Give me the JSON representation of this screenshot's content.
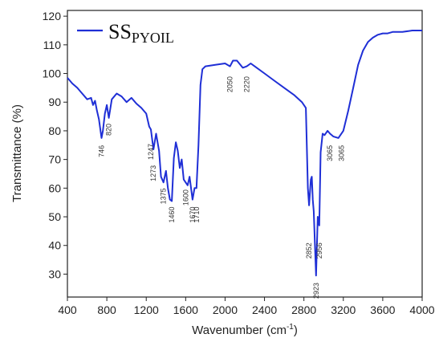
{
  "chart_data": {
    "type": "line",
    "xlabel": "Wavenumber (cm",
    "xlabel_sup": "-1",
    "xlabel_close": ")",
    "ylabel": "Transmittance (%)",
    "xlim": [
      400,
      4000
    ],
    "ylim": [
      22,
      122
    ],
    "x_ticks": [
      400,
      800,
      1200,
      1600,
      2000,
      2400,
      2800,
      3200,
      3600,
      4000
    ],
    "y_ticks": [
      30,
      40,
      50,
      60,
      70,
      80,
      90,
      100,
      110,
      120
    ],
    "grid": false,
    "legend": {
      "position": "top-left",
      "label_main": "SS",
      "label_sub": "PYOIL"
    },
    "series": [
      {
        "name": "SS PYOIL",
        "color": "#1f2fd6",
        "x": [
          400,
          450,
          500,
          550,
          600,
          640,
          660,
          680,
          700,
          720,
          746,
          760,
          780,
          800,
          820,
          850,
          900,
          950,
          1000,
          1050,
          1100,
          1150,
          1200,
          1230,
          1247,
          1260,
          1273,
          1300,
          1330,
          1350,
          1375,
          1400,
          1420,
          1440,
          1460,
          1480,
          1500,
          1520,
          1540,
          1560,
          1580,
          1600,
          1620,
          1640,
          1670,
          1690,
          1710,
          1730,
          1750,
          1770,
          1800,
          1900,
          2000,
          2050,
          2080,
          2120,
          2180,
          2220,
          2260,
          2300,
          2400,
          2500,
          2600,
          2700,
          2780,
          2820,
          2840,
          2852,
          2870,
          2880,
          2890,
          2900,
          2923,
          2940,
          2956,
          2970,
          2990,
          3010,
          3040,
          3065,
          3100,
          3150,
          3200,
          3250,
          3300,
          3350,
          3400,
          3450,
          3500,
          3550,
          3600,
          3650,
          3700,
          3800,
          3900,
          4000
        ],
        "y": [
          98.5,
          96.5,
          95,
          93,
          91,
          91.5,
          89,
          90.5,
          87,
          84,
          77.5,
          80,
          86,
          89,
          84.5,
          91,
          93,
          92,
          90,
          91.5,
          89.5,
          88,
          86,
          81.5,
          80.5,
          77,
          73.5,
          79,
          73,
          64,
          62,
          66,
          60,
          56,
          55.5,
          70.5,
          76,
          73,
          67,
          70,
          63,
          62,
          61,
          64,
          56,
          60,
          60,
          75,
          96,
          101.5,
          102.5,
          103,
          103.5,
          102.5,
          104.5,
          104.5,
          102,
          102.5,
          103.5,
          102.5,
          100,
          97.5,
          95,
          92.5,
          90,
          88,
          60,
          54,
          63,
          64,
          56,
          52,
          29.5,
          50,
          47,
          72.5,
          79,
          78.5,
          80,
          79,
          78,
          77.5,
          80,
          87,
          95,
          103,
          108,
          111,
          112.5,
          113.5,
          114,
          114,
          114.5,
          114.5,
          115,
          115
        ]
      }
    ],
    "annotations": [
      {
        "text": "746",
        "x": 746,
        "y": 75
      },
      {
        "text": "820",
        "x": 820,
        "y": 82.5
      },
      {
        "text": "1247",
        "x": 1247,
        "y": 75.5
      },
      {
        "text": "1273",
        "x": 1273,
        "y": 68
      },
      {
        "text": "1375",
        "x": 1375,
        "y": 60
      },
      {
        "text": "1460",
        "x": 1460,
        "y": 53.5
      },
      {
        "text": "1600",
        "x": 1600,
        "y": 59.5
      },
      {
        "text": "1670",
        "x": 1670,
        "y": 53.5
      },
      {
        "text": "1710",
        "x": 1710,
        "y": 53.5
      },
      {
        "text": "2050",
        "x": 2050,
        "y": 99
      },
      {
        "text": "2220",
        "x": 2220,
        "y": 99
      },
      {
        "text": "2852",
        "x": 2852,
        "y": 41
      },
      {
        "text": "2923",
        "x": 2923,
        "y": 27
      },
      {
        "text": "2956",
        "x": 2956,
        "y": 41
      },
      {
        "text": "3065",
        "x": 3065,
        "y": 75
      },
      {
        "text": "3065",
        "x": 3180,
        "y": 75
      }
    ]
  }
}
